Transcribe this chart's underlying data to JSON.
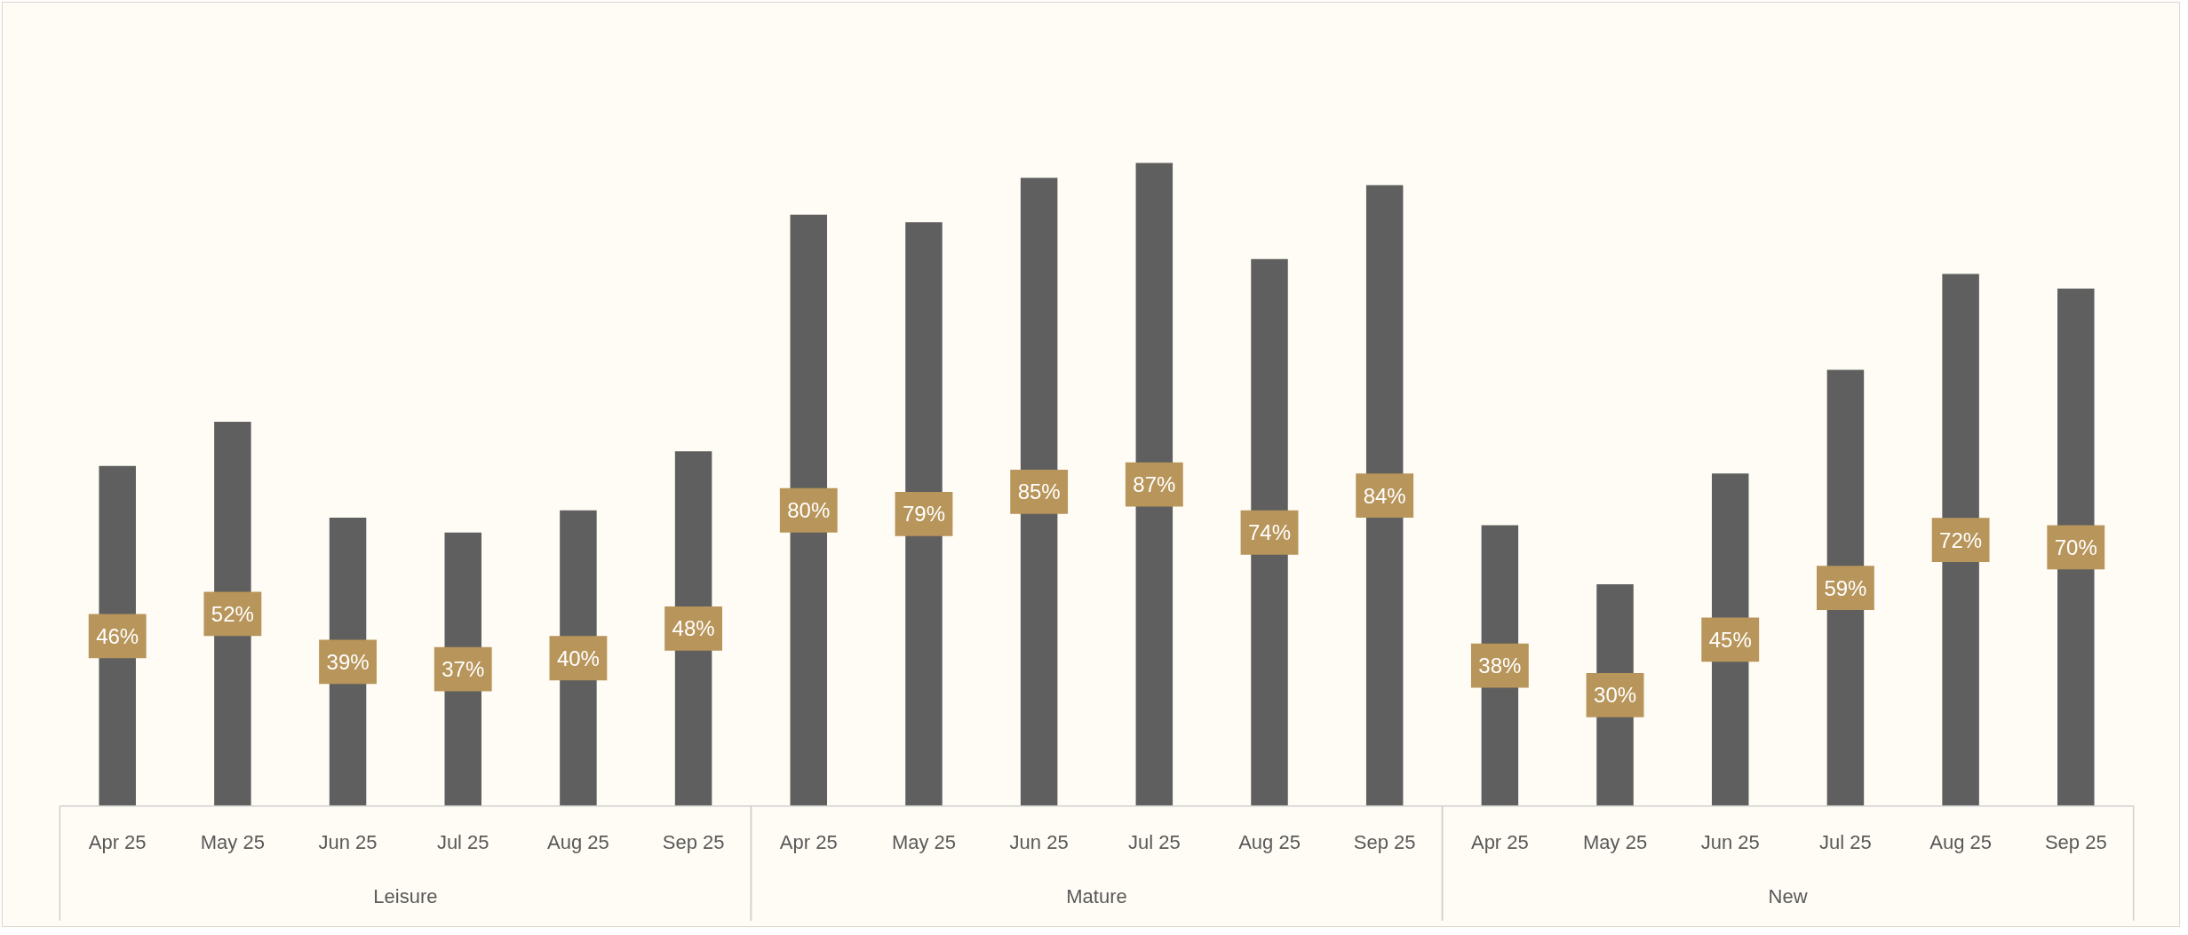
{
  "chart_data": {
    "type": "bar",
    "categories": [
      "Apr 25",
      "May 25",
      "Jun 25",
      "Jul 25",
      "Aug 25",
      "Sep 25",
      "Apr 25",
      "May 25",
      "Jun 25",
      "Jul 25",
      "Aug 25",
      "Sep 25",
      "Apr 25",
      "May 25",
      "Jun 25",
      "Jul 25",
      "Aug 25",
      "Sep 25"
    ],
    "values": [
      46,
      52,
      39,
      37,
      40,
      48,
      80,
      79,
      85,
      87,
      74,
      84,
      38,
      30,
      45,
      59,
      72,
      70
    ],
    "value_labels": [
      "46%",
      "52%",
      "39%",
      "37%",
      "40%",
      "48%",
      "80%",
      "79%",
      "85%",
      "87%",
      "74%",
      "84%",
      "38%",
      "30%",
      "45%",
      "59%",
      "72%",
      "70%"
    ],
    "color": "#5f5f5f",
    "annotations": [
      "Leisure",
      "Mature",
      "New"
    ],
    "grid": false
  }
}
